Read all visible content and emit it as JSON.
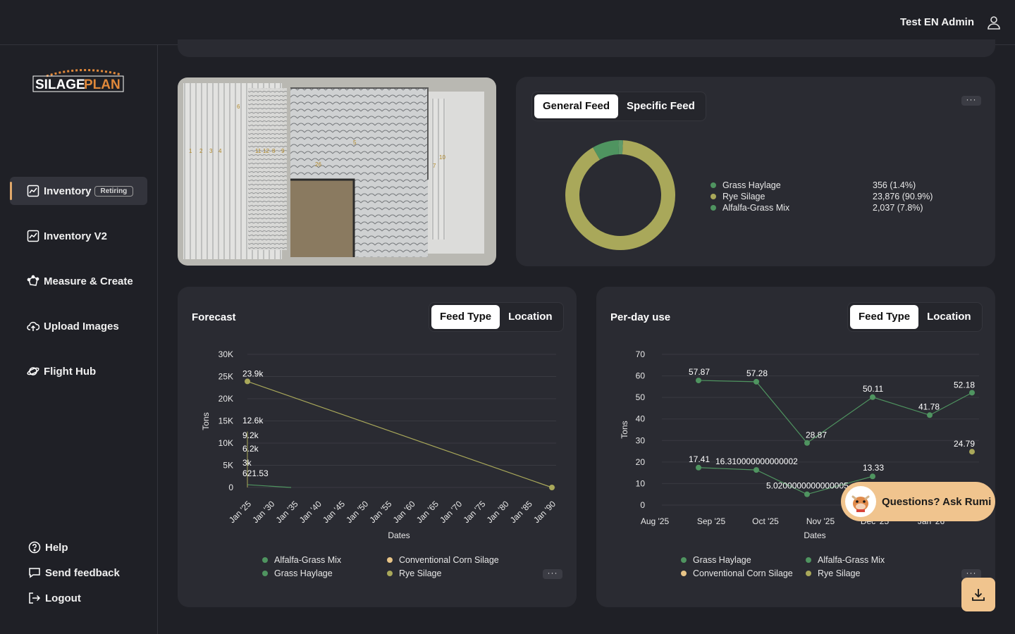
{
  "header": {
    "user_name": "Test EN Admin"
  },
  "logo": {
    "text_a": "SILAGE",
    "text_b": "PLAN"
  },
  "sidebar": {
    "items": [
      {
        "label": "Inventory",
        "badge": "Retiring",
        "icon": "chart-icon",
        "active": true
      },
      {
        "label": "Inventory V2",
        "icon": "chart-icon"
      },
      {
        "label": "Measure & Create",
        "icon": "polygon-icon"
      },
      {
        "label": "Upload Images",
        "icon": "cloud-upload-icon"
      },
      {
        "label": "Flight Hub",
        "icon": "planet-icon"
      }
    ],
    "bottom": [
      {
        "label": "Help",
        "icon": "help-icon"
      },
      {
        "label": "Send feedback",
        "icon": "chat-icon"
      },
      {
        "label": "Logout",
        "icon": "logout-icon"
      }
    ]
  },
  "map": {
    "labels": [
      "1",
      "2",
      "3",
      "4",
      "11",
      "12",
      "8",
      "9",
      "6",
      "5",
      "26",
      "7",
      "10"
    ]
  },
  "feed_panel": {
    "tabs": [
      "General Feed",
      "Specific Feed"
    ],
    "active_tab": 0,
    "colors": {
      "grass_haylage": "#4f9460",
      "rye_silage": "#a9a85a",
      "alfalfa": "#5f8a63"
    },
    "legend": [
      {
        "name": "Grass Haylage",
        "value": "356 (1.4%)",
        "pct": 1.4,
        "color": "#4f9460"
      },
      {
        "name": "Rye Silage",
        "value": "23,876 (90.9%)",
        "pct": 90.9,
        "color": "#a9a85a"
      },
      {
        "name": "Alfalfa-Grass Mix",
        "value": "2,037 (7.8%)",
        "pct": 7.8,
        "color": "#4f9460"
      }
    ]
  },
  "forecast": {
    "title": "Forecast",
    "tabs": [
      "Feed Type",
      "Location"
    ],
    "active_tab": 0,
    "legend": [
      {
        "name": "Alfalfa-Grass Mix",
        "color": "#4f9460"
      },
      {
        "name": "Conventional Corn Silage",
        "color": "#e7c487"
      },
      {
        "name": "Grass Haylage",
        "color": "#4f9460"
      },
      {
        "name": "Rye Silage",
        "color": "#a9a85a"
      }
    ]
  },
  "perday": {
    "title": "Per-day use",
    "tabs": [
      "Feed Type",
      "Location"
    ],
    "active_tab": 0,
    "legend": [
      {
        "name": "Grass Haylage",
        "color": "#4f9460"
      },
      {
        "name": "Alfalfa-Grass Mix",
        "color": "#4f9460"
      },
      {
        "name": "Conventional Corn Silage",
        "color": "#e7c487"
      },
      {
        "name": "Rye Silage",
        "color": "#a9a85a"
      }
    ]
  },
  "chart_data": [
    {
      "type": "pie",
      "categories": [
        "Grass Haylage",
        "Rye Silage",
        "Alfalfa-Grass Mix"
      ],
      "values": [
        356,
        23876,
        2037
      ]
    },
    {
      "type": "line",
      "xlabel": "Dates",
      "ylabel": "Tons",
      "ylim": [
        0,
        30000
      ],
      "yticks": [
        "0",
        "5K",
        "10K",
        "15K",
        "20K",
        "25K",
        "30K"
      ],
      "xticks": [
        "Jan '25",
        "Jan '30",
        "Jan '35",
        "Jan '40",
        "Jan '45",
        "Jan '50",
        "Jan '55",
        "Jan '60",
        "Jan '65",
        "Jan '70",
        "Jan '75",
        "Jan '80",
        "Jan '85",
        "Jan '90"
      ],
      "series": [
        {
          "name": "Rye Silage",
          "x": [
            "Jan '25",
            "Jan '90"
          ],
          "values": [
            23900,
            0
          ],
          "labels": [
            "23.9k",
            ""
          ]
        },
        {
          "name": "Alfalfa-Grass Mix",
          "x": [
            "Jan '25",
            "Jan '34"
          ],
          "values": [
            621.53,
            0
          ],
          "labels": [
            "621.53",
            ""
          ]
        }
      ],
      "annotations": [
        "12.6k",
        "9.2k",
        "6.2k",
        "3k",
        "621.53"
      ]
    },
    {
      "type": "line",
      "xlabel": "Dates",
      "ylabel": "Tons",
      "ylim": [
        0,
        70
      ],
      "yticks": [
        "0",
        "10",
        "20",
        "30",
        "40",
        "50",
        "60",
        "70"
      ],
      "xticks": [
        "Aug '25",
        "Sep '25",
        "Oct '25",
        "Nov '25",
        "Dec '25",
        "Jan '26"
      ],
      "series": [
        {
          "name": "Rye Silage (upper)",
          "x": [
            "Sep '25",
            "Oct '25",
            "Nov '25",
            "Dec '25",
            "Jan '26",
            "Feb '26"
          ],
          "values": [
            57.87,
            57.28,
            28.87,
            50.11,
            41.78,
            52.18
          ],
          "labels": [
            "57.87",
            "57.28",
            "28.87",
            "50.11",
            "41.78",
            "52.18"
          ]
        },
        {
          "name": "Grass Haylage (lower)",
          "x": [
            "Sep '25",
            "Oct '25",
            "Nov '25",
            "Dec '25"
          ],
          "values": [
            17.41,
            16.31,
            5.02,
            13.33
          ],
          "labels": [
            "17.41",
            "16.310000000000002",
            "5.0200000000000005",
            "13.33"
          ]
        },
        {
          "name": "Rye Silage point",
          "x": [
            "Feb '26"
          ],
          "values": [
            24.79
          ],
          "labels": [
            "24.79"
          ]
        }
      ]
    }
  ],
  "rumi": {
    "label": "Questions? Ask Rumi"
  }
}
